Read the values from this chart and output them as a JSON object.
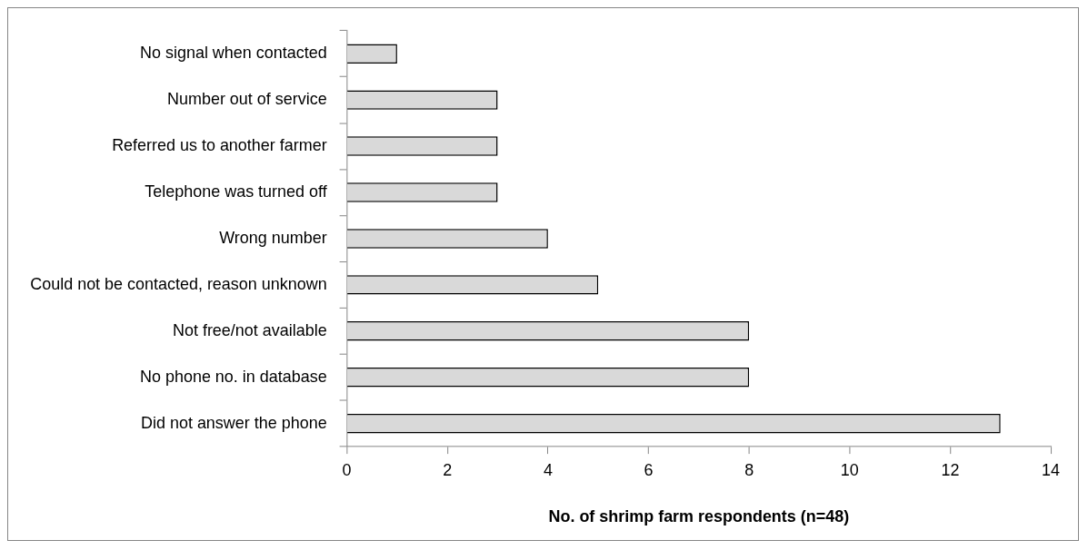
{
  "chart_data": {
    "type": "bar",
    "orientation": "horizontal",
    "xlabel": "No. of shrimp farm respondents (n=48)",
    "categories": [
      "No signal when contacted",
      "Number out of service",
      "Referred us to another farmer",
      "Telephone was turned off",
      "Wrong number",
      "Could not be contacted, reason unknown",
      "Not free/not available",
      "No phone no. in database",
      "Did not answer the phone"
    ],
    "values": [
      1,
      3,
      3,
      3,
      4,
      5,
      8,
      8,
      13
    ],
    "color": "#d9d9d9",
    "xlim": [
      0,
      14
    ],
    "xticks": [
      0,
      2,
      4,
      6,
      8,
      10,
      12,
      14
    ]
  }
}
